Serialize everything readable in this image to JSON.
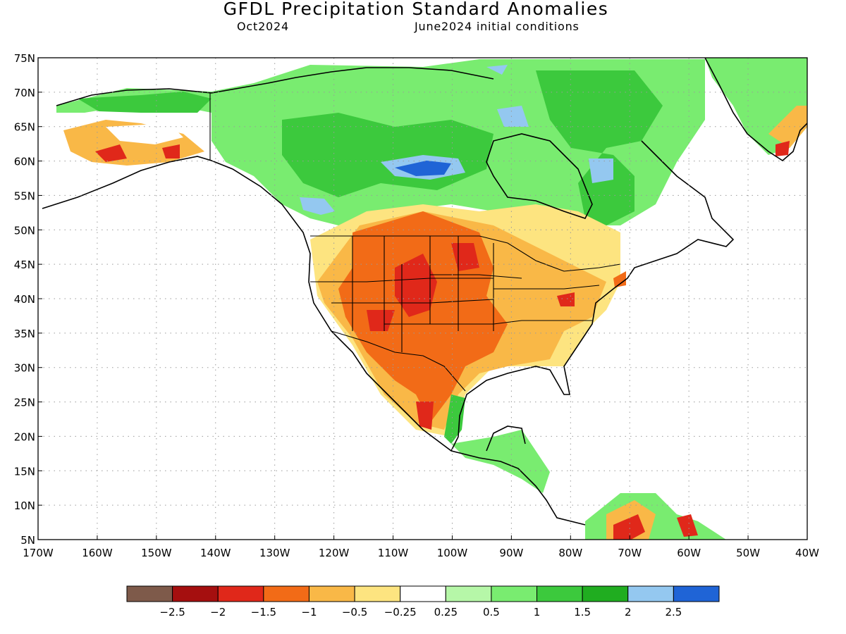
{
  "header": {
    "title": "GFDL Precipitation Standard Anomalies",
    "valid_month": "Oct2024",
    "initial_conditions": "June2024 initial conditions"
  },
  "map": {
    "lon_range": [
      -170,
      -40
    ],
    "lat_range": [
      5,
      75
    ],
    "lat_ticks": [
      "75N",
      "70N",
      "65N",
      "60N",
      "55N",
      "50N",
      "45N",
      "40N",
      "35N",
      "30N",
      "25N",
      "20N",
      "15N",
      "10N",
      "5N"
    ],
    "lon_ticks": [
      "170W",
      "160W",
      "150W",
      "140W",
      "130W",
      "120W",
      "110W",
      "100W",
      "90W",
      "80W",
      "70W",
      "60W",
      "50W",
      "40W"
    ]
  },
  "colorbar": {
    "colors": [
      "#7e5a4a",
      "#a50f0f",
      "#e0281a",
      "#f26b17",
      "#f9b847",
      "#fde480",
      "#ffffff",
      "#b6f7a8",
      "#79ec70",
      "#3cc93d",
      "#20ad20",
      "#94c8f0",
      "#1f64d6"
    ],
    "labels": [
      "−2.5",
      "−2",
      "−1.5",
      "−1",
      "−0.5",
      "−0.25",
      "0.25",
      "0.5",
      "1",
      "1.5",
      "2",
      "2.5"
    ]
  }
}
